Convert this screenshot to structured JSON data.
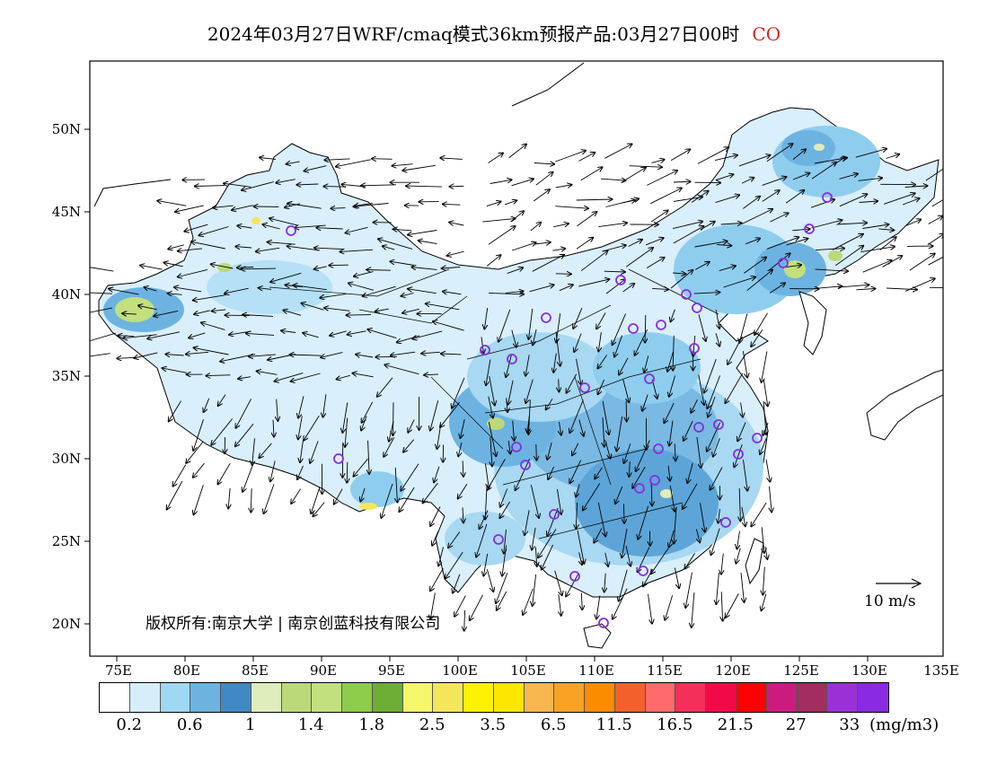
{
  "title": {
    "text": "2024年03月27日WRF/cmaq模式36km预报产品:03月27日00时",
    "pollutant": "CO",
    "pollutant_color": "#e02020"
  },
  "axes": {
    "lat_labels": [
      "50N",
      "45N",
      "40N",
      "35N",
      "30N",
      "25N",
      "20N"
    ],
    "lon_labels": [
      "75E",
      "80E",
      "85E",
      "90E",
      "95E",
      "100E",
      "105E",
      "110E",
      "115E",
      "120E",
      "125E",
      "130E",
      "135E"
    ]
  },
  "copyright": "版权所有:南京大学 | 南京创蓝科技有限公司",
  "wind_scale": {
    "label": "10 m/s"
  },
  "legend": {
    "colors": [
      "#ffffff",
      "#d6eefa",
      "#9fd8f4",
      "#6db3e2",
      "#4189c4",
      "#dfecbc",
      "#bcd97a",
      "#c3e07e",
      "#8ccc4a",
      "#6ead34",
      "#f5f76a",
      "#f3e65a",
      "#fff200",
      "#ffe600",
      "#f8b64e",
      "#f9a325",
      "#fd8b00",
      "#f4602c",
      "#ff6b6b",
      "#f42f5a",
      "#f20a48",
      "#ff0000",
      "#cc1b7f",
      "#a32d5e",
      "#9b30d6",
      "#8a2be2"
    ],
    "tick_labels": [
      "0.2",
      "0.6",
      "1",
      "1.4",
      "1.8",
      "2.5",
      "3.5",
      "6.5",
      "11.5",
      "16.5",
      "21.5",
      "27",
      "33"
    ],
    "unit": "(mg/m3)"
  }
}
